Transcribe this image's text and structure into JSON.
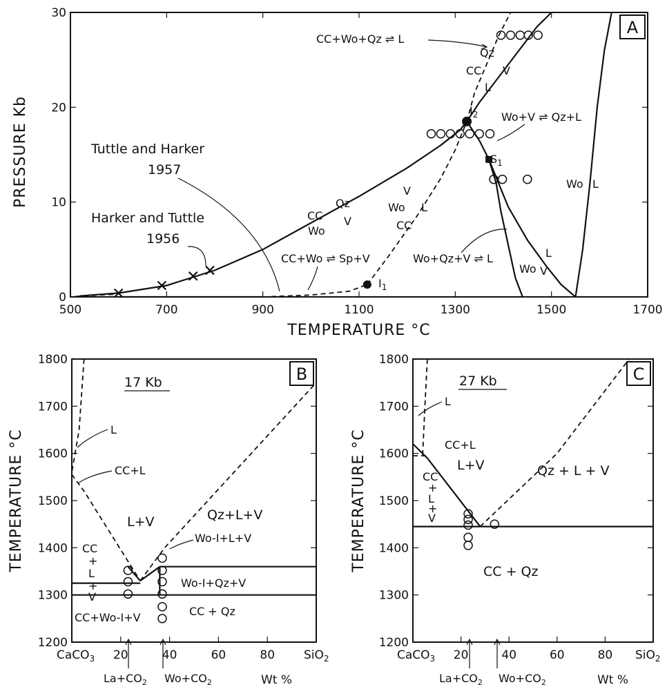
{
  "chart_data": [
    {
      "panel": "A",
      "type": "line",
      "xlabel": "TEMPERATURE °C",
      "ylabel": "PRESSURE Kb",
      "xlim": [
        500,
        1700
      ],
      "ylim": [
        0,
        30
      ],
      "xticks": [
        "500",
        "700",
        "900",
        "1100",
        "1300",
        "1500",
        "1700"
      ],
      "yticks": [
        "0",
        "10",
        "20",
        "30"
      ],
      "curves": [
        {
          "name": "CC Qz Wo V",
          "style": "solid",
          "x": [
            520,
            600,
            700,
            800,
            900,
            1000,
            1100,
            1200,
            1270,
            1310,
            1324
          ],
          "y": [
            0.1,
            0.4,
            1.2,
            2.8,
            5.0,
            7.8,
            10.6,
            13.6,
            16.0,
            17.6,
            18.5
          ]
        },
        {
          "name": "CC+Wo+Qz = L",
          "style": "dashed",
          "x": [
            1324,
            1340,
            1365,
            1390,
            1415
          ],
          "y": [
            18.5,
            21.5,
            24.5,
            27.5,
            30.0
          ]
        },
        {
          "name": "CC Wo V L",
          "style": "dashed",
          "x": [
            1117,
            1160,
            1220,
            1270,
            1300,
            1324
          ],
          "y": [
            1.3,
            4.2,
            8.5,
            12.5,
            15.5,
            18.5
          ]
        },
        {
          "name": "CC+Wo = Sp+V",
          "style": "dashed",
          "x": [
            900,
            1000,
            1080,
            1117
          ],
          "y": [
            0.0,
            0.2,
            0.6,
            1.3
          ]
        },
        {
          "name": "CC+Wo = Sp+V (solid)",
          "style": "solid",
          "x": [
            600,
            750,
            900
          ],
          "y": [
            0.0,
            0.0,
            0.0
          ]
        },
        {
          "name": "Qz CC V L",
          "style": "solid",
          "x": [
            1324,
            1350,
            1380,
            1410,
            1440,
            1470,
            1500
          ],
          "y": [
            18.5,
            20.5,
            22.5,
            24.5,
            26.5,
            28.5,
            30.0
          ]
        },
        {
          "name": "Wo+V = Qz+L",
          "style": "solid",
          "x": [
            1324,
            1350,
            1370,
            1385,
            1395,
            1410,
            1425,
            1440
          ],
          "y": [
            18.5,
            16.5,
            14.5,
            12.0,
            9.0,
            5.5,
            2.0,
            0.0
          ]
        },
        {
          "name": "Wo L V",
          "style": "solid",
          "x": [
            1370,
            1410,
            1450,
            1490,
            1520,
            1550
          ],
          "y": [
            14.5,
            9.5,
            6.0,
            3.2,
            1.3,
            0.0
          ]
        },
        {
          "name": "Wo L",
          "style": "solid",
          "x": [
            1550,
            1565,
            1580,
            1595,
            1610,
            1625
          ],
          "y": [
            0.0,
            5.0,
            12.0,
            20.0,
            26.0,
            30.0
          ]
        }
      ],
      "points": {
        "I1": {
          "x": 1117,
          "y": 1.3
        },
        "I2": {
          "x": 1324,
          "y": 18.5
        },
        "S1": {
          "x": 1370,
          "y": 14.5
        },
        "crosses": [
          [
            600,
            0.4
          ],
          [
            690,
            1.2
          ],
          [
            755,
            2.2
          ],
          [
            790,
            2.8
          ]
        ],
        "circles": [
          [
            1250,
            17.2
          ],
          [
            1270,
            17.2
          ],
          [
            1290,
            17.2
          ],
          [
            1310,
            17.2
          ],
          [
            1330,
            17.2
          ],
          [
            1350,
            17.2
          ],
          [
            1372,
            17.2
          ],
          [
            1380,
            12.4
          ],
          [
            1398,
            12.4
          ],
          [
            1450,
            12.4
          ],
          [
            1395,
            27.6
          ],
          [
            1415,
            27.6
          ],
          [
            1435,
            27.6
          ],
          [
            1452,
            27.6
          ],
          [
            1472,
            27.6
          ]
        ]
      },
      "labels": {
        "panel": "A",
        "reaction_melt": "CC+Wo+Qz ⇌ L",
        "reaction_qz": "Wo+V ⇌ Qz+L",
        "reaction_sp": "CC+Wo ⇌ Sp+V",
        "reaction_l": "Wo+Qz+V ⇌ L",
        "tuttle_name": "Tuttle and Harker",
        "tuttle_year": "1957",
        "harker_name": "Harker and Tuttle",
        "harker_year": "1956",
        "I1": "I",
        "I1_sub": "1",
        "I2": "I",
        "I2_sub": "2",
        "S1": "S",
        "S1_sub": "1",
        "cc": "CC",
        "qz": "Qz",
        "wo": "Wo",
        "v": "V",
        "l": "L"
      }
    },
    {
      "panel": "B",
      "type": "line",
      "title": "17 Kb",
      "xlabel": "Wt %",
      "ylabel": "TEMPERATURE °C",
      "xlim": [
        0,
        100
      ],
      "ylim": [
        1200,
        1800
      ],
      "xticks": [
        "20",
        "40",
        "60",
        "80"
      ],
      "xend_left": "CaCO",
      "xend_left_sub": "3",
      "xend_right": "SiO",
      "xend_right_sub": "2",
      "yticks": [
        "1200",
        "1300",
        "1400",
        "1500",
        "1600",
        "1700",
        "1800"
      ],
      "fields": [
        "L",
        "CC+L",
        "L+V",
        "Qz+L+V",
        "CC + L + V",
        "Wo-I+L+V",
        "Wo-I+Qz+V",
        "CC+Wo-I+V",
        "CC + Qz"
      ],
      "arrows": [
        "La+CO",
        "Wo+CO"
      ],
      "circles_x23": [
        1352,
        1328,
        1302
      ],
      "circles_x37": [
        1378,
        1352,
        1328,
        1302,
        1275,
        1250
      ]
    },
    {
      "panel": "C",
      "type": "line",
      "title": "27 Kb",
      "xlabel": "Wt %",
      "ylabel": "TEMPERATURE °C",
      "xlim": [
        0,
        100
      ],
      "ylim": [
        1200,
        1800
      ],
      "xticks": [
        "20",
        "40",
        "60",
        "80"
      ],
      "xend_left": "CaCO",
      "xend_left_sub": "3",
      "xend_right": "SiO",
      "xend_right_sub": "2",
      "yticks": [
        "1200",
        "1300",
        "1400",
        "1500",
        "1600",
        "1700",
        "1800"
      ],
      "fields": [
        "L",
        "CC+L",
        "L+V",
        "CC + L + V",
        "Qz + L + V",
        "CC + Qz"
      ],
      "arrows": [
        "La+CO",
        "Wo+CO"
      ],
      "circles_x23": [
        1472,
        1460,
        1448,
        1422,
        1405
      ],
      "circles_x37": [
        1450
      ]
    }
  ]
}
